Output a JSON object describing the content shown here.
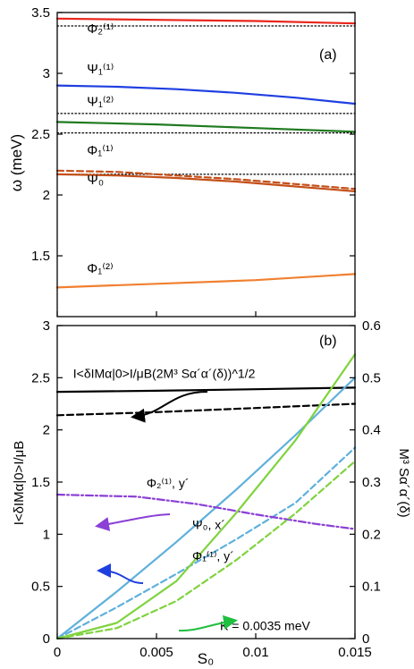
{
  "colors": {
    "red": "#e8261c",
    "blue": "#1f3fe0",
    "green": "#1f7a1f",
    "darkorange": "#c4501a",
    "orange": "#f08030",
    "black": "#000000",
    "lightblue": "#5fb0dc",
    "lightgreen": "#7fd33f",
    "purple": "#8a3fd6"
  },
  "chart_data": [
    {
      "type": "line",
      "panel_label": "(a)",
      "ylabel": "ω (meV)",
      "xlabel": "",
      "xlim": [
        0,
        0.015
      ],
      "ylim": [
        1.0,
        3.5
      ],
      "yticks": [
        1.5,
        2,
        2.5,
        3,
        3.5
      ],
      "ytick_labels": [
        "1.5",
        "2",
        "2.5",
        "3",
        "3.5"
      ],
      "xticks": [
        0,
        0.005,
        0.01,
        0.015
      ],
      "grid": false,
      "series": [
        {
          "name": "",
          "color": "red",
          "style": "solid",
          "x": [
            0,
            0.005,
            0.01,
            0.015
          ],
          "y": [
            3.45,
            3.44,
            3.43,
            3.41
          ]
        },
        {
          "name": "",
          "color": "black",
          "style": "dotted",
          "x": [
            0,
            0.015
          ],
          "y": [
            3.39,
            3.39
          ]
        },
        {
          "name": "",
          "color": "blue",
          "style": "solid",
          "x": [
            0,
            0.003,
            0.006,
            0.009,
            0.012,
            0.015
          ],
          "y": [
            2.9,
            2.89,
            2.87,
            2.84,
            2.8,
            2.75
          ]
        },
        {
          "name": "",
          "color": "black",
          "style": "dotted",
          "x": [
            0,
            0.015
          ],
          "y": [
            2.67,
            2.67
          ]
        },
        {
          "name": "",
          "color": "green",
          "style": "solid",
          "x": [
            0,
            0.005,
            0.01,
            0.015
          ],
          "y": [
            2.6,
            2.58,
            2.55,
            2.52
          ]
        },
        {
          "name": "",
          "color": "black",
          "style": "dotted",
          "x": [
            0,
            0.015
          ],
          "y": [
            2.51,
            2.51
          ]
        },
        {
          "name": "",
          "color": "black",
          "style": "dotted",
          "x": [
            0,
            0.015
          ],
          "y": [
            2.17,
            2.17
          ]
        },
        {
          "name": "",
          "color": "darkorange",
          "style": "solid",
          "x": [
            0,
            0.003,
            0.006,
            0.009,
            0.012,
            0.015
          ],
          "y": [
            2.17,
            2.16,
            2.14,
            2.11,
            2.07,
            2.03
          ]
        },
        {
          "name": "",
          "color": "darkorange",
          "style": "dashed",
          "x": [
            0,
            0.003,
            0.006,
            0.009,
            0.012,
            0.015
          ],
          "y": [
            2.2,
            2.19,
            2.16,
            2.13,
            2.09,
            2.05
          ]
        },
        {
          "name": "",
          "color": "orange",
          "style": "solid",
          "x": [
            0,
            0.005,
            0.01,
            0.015
          ],
          "y": [
            1.24,
            1.27,
            1.3,
            1.35
          ]
        }
      ],
      "annotations": [
        {
          "text": "Φ₂⁽¹⁾",
          "x": 0.0015,
          "y": 3.33
        },
        {
          "text": "Ψ₁⁽¹⁾",
          "x": 0.0015,
          "y": 3.0
        },
        {
          "text": "Ψ₁⁽²⁾",
          "x": 0.0015,
          "y": 2.73
        },
        {
          "text": "Φ₁⁽¹⁾",
          "x": 0.0015,
          "y": 2.33
        },
        {
          "text": "Ψ₀",
          "x": 0.0015,
          "y": 2.09
        },
        {
          "text": "Φ₁⁽²⁾",
          "x": 0.0015,
          "y": 1.36
        }
      ]
    },
    {
      "type": "line",
      "panel_label": "(b)",
      "xlabel": "S₀",
      "ylabel": "I<δIMα|0>I/μB",
      "ylabel_right": "M³ Sα´α´(δ)",
      "xlim": [
        0,
        0.015
      ],
      "ylim": [
        0,
        3
      ],
      "ylim_right": [
        0,
        0.6
      ],
      "xticks": [
        0,
        0.005,
        0.01,
        0.015
      ],
      "xtick_labels": [
        "0",
        "0.005",
        "0.01",
        "0.015"
      ],
      "yticks": [
        0,
        0.5,
        1,
        1.5,
        2,
        2.5,
        3
      ],
      "ytick_labels": [
        "0",
        "0.5",
        "1",
        "1.5",
        "2",
        "2.5",
        "3"
      ],
      "yticks_right": [
        0,
        0.1,
        0.2,
        0.3,
        0.4,
        0.5,
        0.6
      ],
      "ytick_labels_right": [
        "0",
        "0.1",
        "0.2",
        "0.3",
        "0.4",
        "0.5",
        "0.6"
      ],
      "grid": false,
      "series": [
        {
          "name": "",
          "color": "black",
          "style": "solid",
          "axis": "right",
          "x": [
            0,
            0.005,
            0.01,
            0.015
          ],
          "y": [
            0.473,
            0.475,
            0.478,
            0.481
          ]
        },
        {
          "name": "",
          "color": "black",
          "style": "dashed",
          "axis": "left",
          "x": [
            0,
            0.005,
            0.01,
            0.015
          ],
          "y": [
            2.14,
            2.17,
            2.21,
            2.25
          ]
        },
        {
          "name": "",
          "color": "lightblue",
          "style": "solid",
          "axis": "right",
          "x": [
            0,
            0.003,
            0.006,
            0.009,
            0.012,
            0.015
          ],
          "y": [
            0,
            0.09,
            0.185,
            0.285,
            0.39,
            0.5
          ]
        },
        {
          "name": "",
          "color": "lightblue",
          "style": "dashed",
          "axis": "left",
          "x": [
            0,
            0.003,
            0.006,
            0.009,
            0.012,
            0.015
          ],
          "y": [
            0,
            0.3,
            0.62,
            0.95,
            1.3,
            1.83
          ]
        },
        {
          "name": "",
          "color": "purple",
          "style": "dashdot",
          "axis": "left",
          "x": [
            0,
            0.004,
            0.007,
            0.01,
            0.013,
            0.015
          ],
          "y": [
            1.38,
            1.36,
            1.29,
            1.19,
            1.1,
            1.05
          ]
        },
        {
          "name": "",
          "color": "lightgreen",
          "style": "solid",
          "axis": "right",
          "x": [
            0,
            0.003,
            0.006,
            0.009,
            0.012,
            0.015
          ],
          "y": [
            0,
            0.03,
            0.11,
            0.24,
            0.38,
            0.545
          ]
        },
        {
          "name": "",
          "color": "lightgreen",
          "style": "dashed",
          "axis": "left",
          "x": [
            0,
            0.003,
            0.006,
            0.009,
            0.012,
            0.015
          ],
          "y": [
            0,
            0.1,
            0.36,
            0.75,
            1.2,
            1.7
          ]
        }
      ],
      "annotations": [
        {
          "text": "I<δIMα|0>I/μB(2M³ Sα´α´(δ))^1/2",
          "x": 0.0008,
          "y": 2.5
        },
        {
          "text": "Φ₂⁽¹⁾, y´",
          "x": 0.0045,
          "y": 1.45
        },
        {
          "text": "Ψ₀, x´",
          "x": 0.0068,
          "y": 1.05
        },
        {
          "text": "Φ₁⁽¹⁾, y´",
          "x": 0.0068,
          "y": 0.75
        },
        {
          "text": "K = 0.0035 meV",
          "x": 0.0082,
          "y": 0.08
        }
      ]
    }
  ]
}
